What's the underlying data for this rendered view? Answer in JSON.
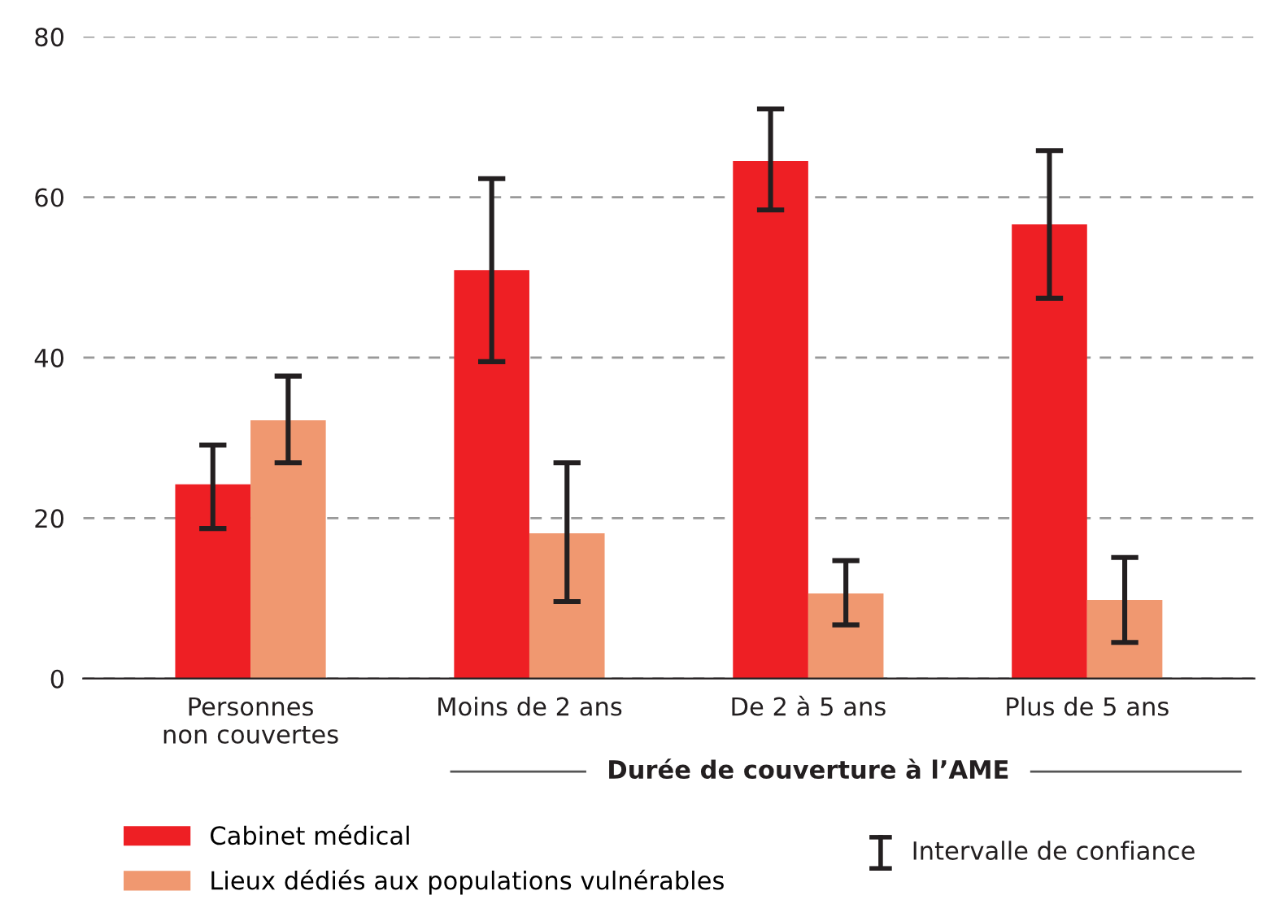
{
  "chart_data": {
    "type": "bar",
    "categories": [
      "Personnes\nnon couvertes",
      "Moins de 2 ans",
      "De 2 à 5 ans",
      "Plus de 5 ans"
    ],
    "xlabel": "Durée de couverture à l’AME",
    "series": [
      {
        "name": "Cabinet médical",
        "color": "#ee1f24",
        "values": [
          24.2,
          50.9,
          64.5,
          56.6
        ],
        "errors": [
          [
            18.7,
            29.1
          ],
          [
            39.5,
            62.3
          ],
          [
            58.4,
            71.0
          ],
          [
            47.4,
            65.8
          ]
        ]
      },
      {
        "name": "Lieux dédiés aux populations vulnérables",
        "color": "#f09870",
        "values": [
          32.2,
          18.1,
          10.6,
          9.8
        ],
        "errors": [
          [
            26.9,
            37.7
          ],
          [
            9.6,
            26.9
          ],
          [
            6.7,
            14.7
          ],
          [
            4.5,
            15.1
          ]
        ]
      }
    ],
    "ylim": [
      0,
      80
    ],
    "yticks": [
      0,
      20,
      40,
      60,
      80
    ],
    "grid": "y",
    "legend": "bottom",
    "annotations": [
      "Intervalle de confiance"
    ]
  }
}
